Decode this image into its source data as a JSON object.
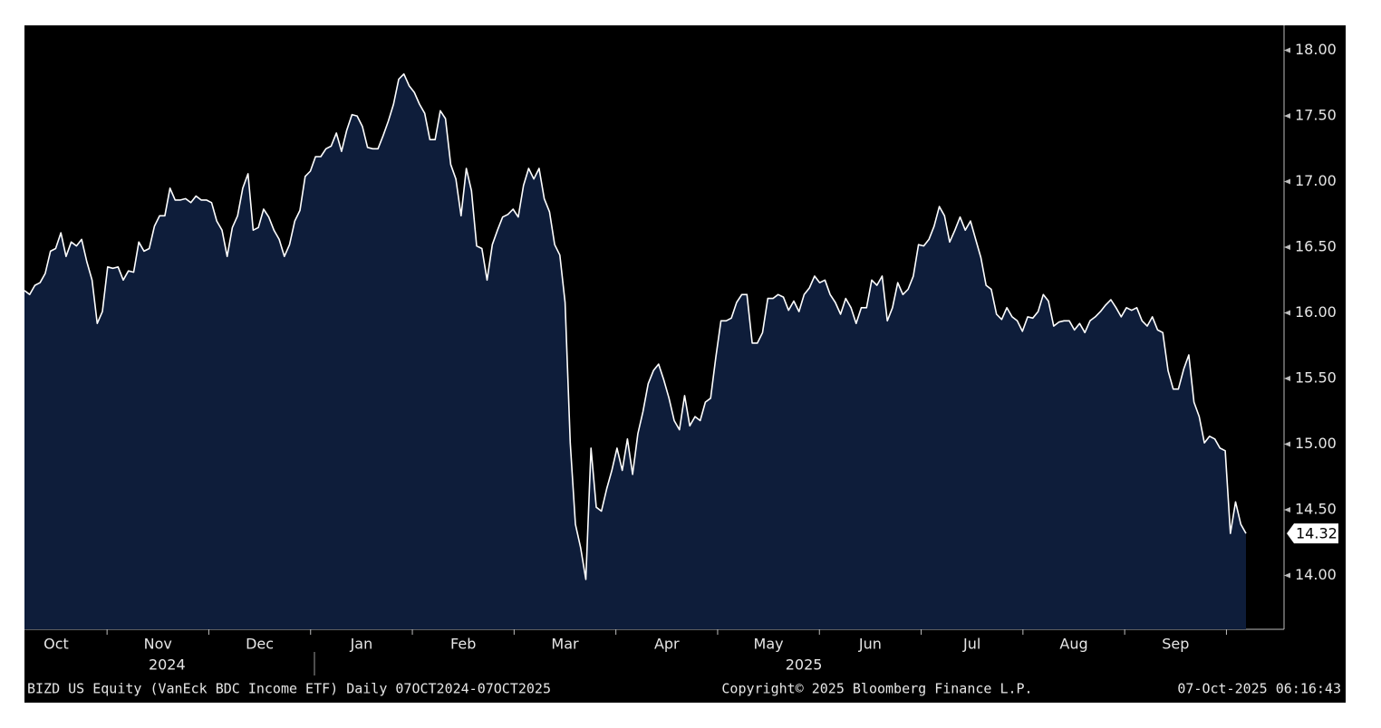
{
  "chart_data": {
    "type": "area",
    "values": [
      16.17,
      16.14,
      16.21,
      16.23,
      16.3,
      16.47,
      16.49,
      16.61,
      16.43,
      16.54,
      16.51,
      16.56,
      16.39,
      16.25,
      15.92,
      16.01,
      16.35,
      16.34,
      16.35,
      16.25,
      16.32,
      16.31,
      16.54,
      16.47,
      16.49,
      16.66,
      16.74,
      16.74,
      16.95,
      16.86,
      16.86,
      16.87,
      16.84,
      16.89,
      16.86,
      16.86,
      16.84,
      16.7,
      16.63,
      16.43,
      16.65,
      16.74,
      16.95,
      17.06,
      16.63,
      16.65,
      16.79,
      16.73,
      16.63,
      16.56,
      16.43,
      16.52,
      16.7,
      16.78,
      17.04,
      17.08,
      17.19,
      17.19,
      17.25,
      17.27,
      17.37,
      17.23,
      17.39,
      17.51,
      17.5,
      17.42,
      17.26,
      17.25,
      17.25,
      17.35,
      17.46,
      17.59,
      17.78,
      17.82,
      17.73,
      17.68,
      17.59,
      17.52,
      17.32,
      17.32,
      17.54,
      17.48,
      17.13,
      17.02,
      16.74,
      17.1,
      16.93,
      16.51,
      16.49,
      16.25,
      16.52,
      16.63,
      16.73,
      16.75,
      16.79,
      16.73,
      16.97,
      17.1,
      17.02,
      17.1,
      16.87,
      16.77,
      16.52,
      16.44,
      16.08,
      15.01,
      14.39,
      14.21,
      13.97,
      14.97,
      14.52,
      14.49,
      14.66,
      14.8,
      14.97,
      14.8,
      15.04,
      14.77,
      15.08,
      15.25,
      15.46,
      15.56,
      15.61,
      15.49,
      15.35,
      15.18,
      15.11,
      15.37,
      15.14,
      15.21,
      15.18,
      15.32,
      15.35,
      15.66,
      15.94,
      15.94,
      15.96,
      16.08,
      16.14,
      16.14,
      15.77,
      15.77,
      15.85,
      16.11,
      16.11,
      16.14,
      16.12,
      16.02,
      16.09,
      16.01,
      16.14,
      16.19,
      16.28,
      16.23,
      16.25,
      16.14,
      16.08,
      15.99,
      16.11,
      16.04,
      15.92,
      16.04,
      16.04,
      16.25,
      16.21,
      16.28,
      15.94,
      16.04,
      16.23,
      16.14,
      16.18,
      16.28,
      16.52,
      16.51,
      16.56,
      16.66,
      16.81,
      16.74,
      16.54,
      16.63,
      16.73,
      16.63,
      16.7,
      16.56,
      16.42,
      16.21,
      16.18,
      15.99,
      15.95,
      16.04,
      15.97,
      15.94,
      15.86,
      15.97,
      15.96,
      16.01,
      16.14,
      16.09,
      15.9,
      15.93,
      15.94,
      15.94,
      15.87,
      15.92,
      15.85,
      15.94,
      15.97,
      16.01,
      16.06,
      16.1,
      16.04,
      15.97,
      16.04,
      16.02,
      16.04,
      15.94,
      15.9,
      15.97,
      15.87,
      15.85,
      15.56,
      15.42,
      15.42,
      15.57,
      15.68,
      15.32,
      15.21,
      15.01,
      15.06,
      15.04,
      14.97,
      14.95,
      14.32,
      14.56,
      14.39,
      14.32
    ],
    "last_label": "14.32",
    "line_color": "#ffffff",
    "fill_color": "#0e1d3a",
    "ylim": [
      13.59,
      18.19
    ],
    "yticks": [
      {
        "value": 14,
        "label": "14.00"
      },
      {
        "value": 14.5,
        "label": "14.50"
      },
      {
        "value": 15,
        "label": "15.00"
      },
      {
        "value": 15.5,
        "label": "15.50"
      },
      {
        "value": 16,
        "label": "16.00"
      },
      {
        "value": 16.5,
        "label": "16.50"
      },
      {
        "value": 17,
        "label": "17.00"
      },
      {
        "value": 17.5,
        "label": "17.50"
      },
      {
        "value": 18,
        "label": "18.00"
      }
    ],
    "month_labels": [
      "Oct",
      "Nov",
      "Dec",
      "Jan",
      "Feb",
      "Mar",
      "Apr",
      "May",
      "Jun",
      "Jul",
      "Aug",
      "Sep"
    ],
    "year_labels": [
      "2024",
      "2025"
    ],
    "footer_left": "BIZD US Equity (VanEck BDC Income ETF) Daily 07OCT2024-07OCT2025",
    "footer_center": "Copyright© 2025 Bloomberg Finance L.P.",
    "footer_right": "07-Oct-2025 06:16:43"
  }
}
